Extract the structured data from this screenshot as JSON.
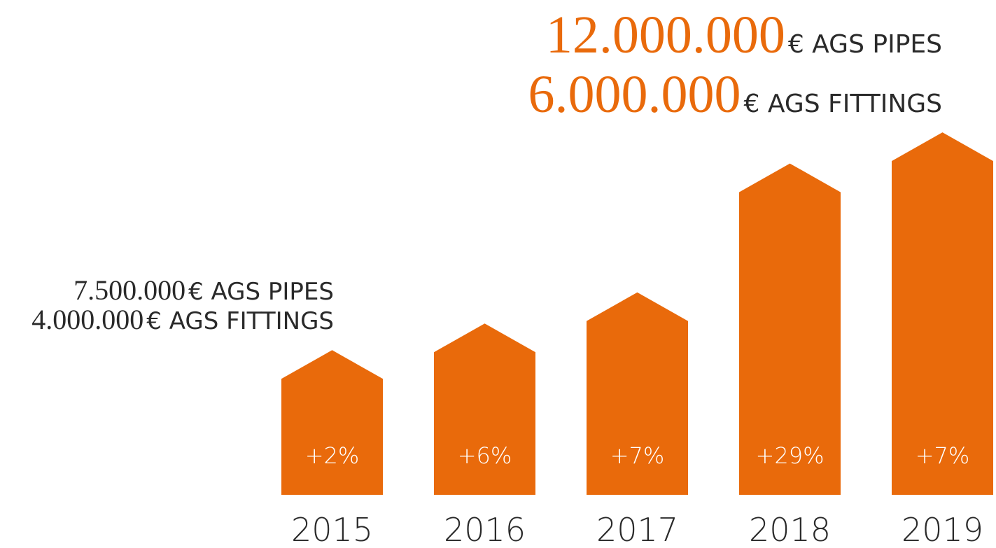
{
  "chart_data": {
    "type": "bar",
    "categories": [
      "2015",
      "2016",
      "2017",
      "2018",
      "2019"
    ],
    "values": [
      2,
      6,
      7,
      29,
      7
    ],
    "value_labels": [
      "+2%",
      "+6%",
      "+7%",
      "+29%",
      "+7%"
    ],
    "color": "#e96a0b",
    "annotations": [
      {
        "amount": "7.500.000",
        "unit": "€ AGS PIPES"
      },
      {
        "amount": "4.000.000",
        "unit": "€ AGS FITTINGS"
      },
      {
        "amount": "12.000.000",
        "unit": "€ AGS PIPES"
      },
      {
        "amount": "6.000.000",
        "unit": "€ AGS FITTINGS"
      }
    ]
  }
}
